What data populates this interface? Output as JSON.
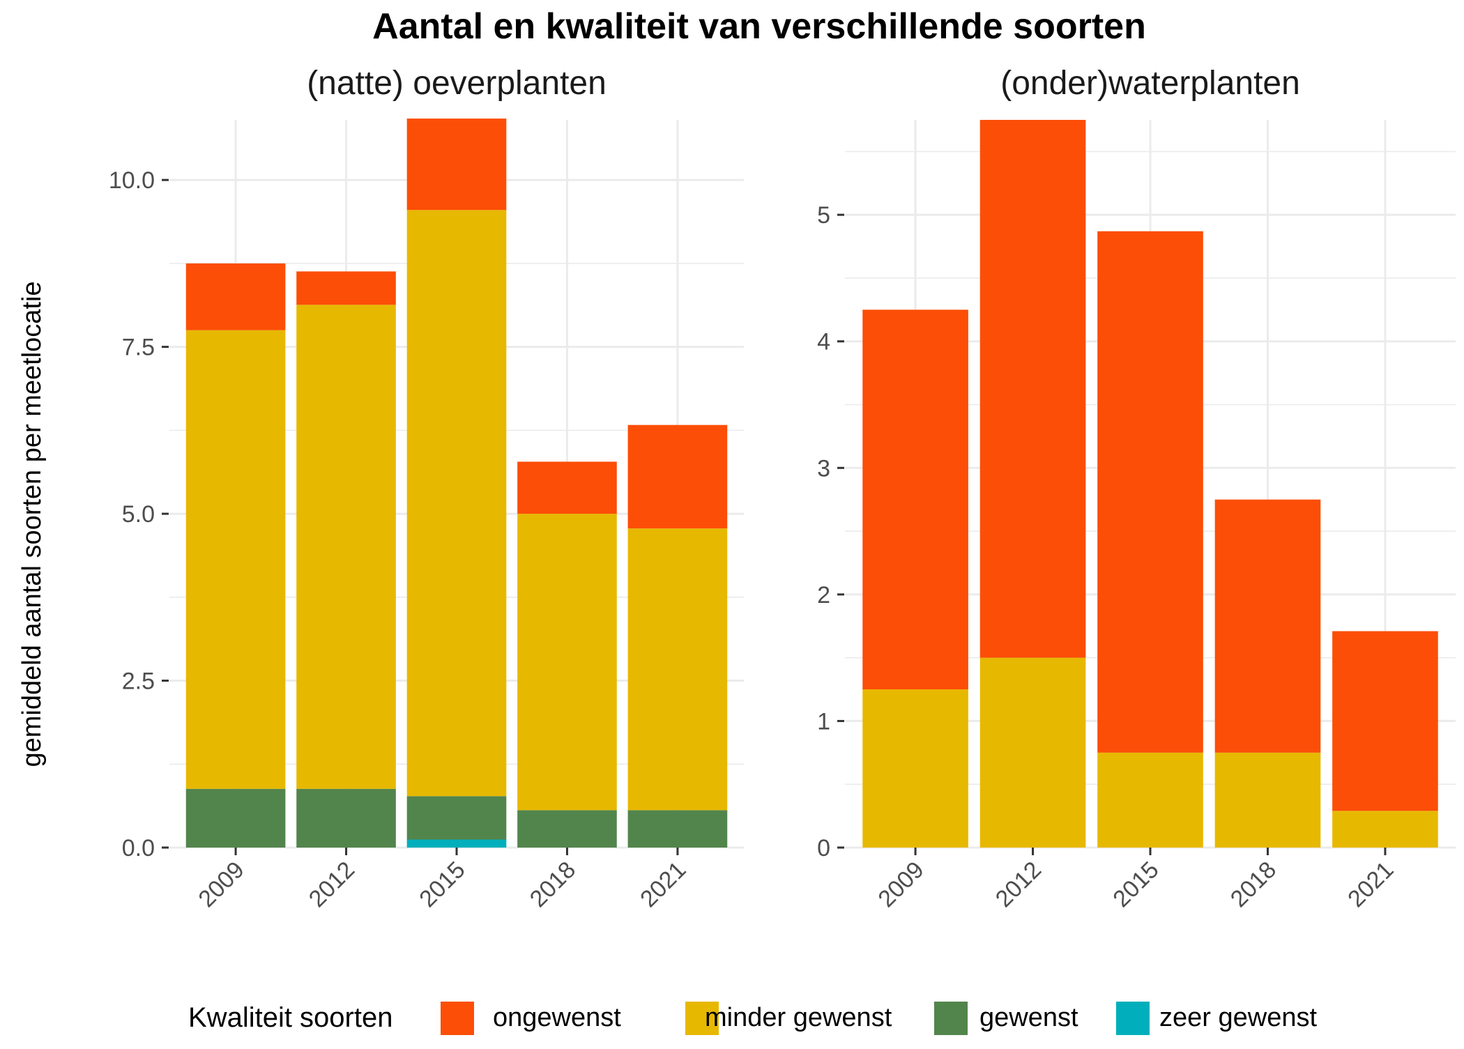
{
  "chart_data": {
    "type": "bar",
    "stacked": true,
    "title": "Aantal en kwaliteit van verschillende soorten",
    "ylabel": "gemiddeld aantal soorten per meetlocatie",
    "grid": true,
    "legend": {
      "position": "bottom",
      "title": "Kwaliteit soorten",
      "entries": [
        {
          "name": "ongewenst",
          "color": "#FC4E07"
        },
        {
          "name": "minder gewenst",
          "color": "#E7B800"
        },
        {
          "name": "gewenst",
          "color": "#52854C"
        },
        {
          "name": "zeer gewenst",
          "color": "#00AFBB"
        }
      ]
    },
    "panels": [
      {
        "title": "(natte) oeverplanten",
        "categories": [
          "2009",
          "2012",
          "2015",
          "2018",
          "2021"
        ],
        "ylim": [
          0,
          10.9
        ],
        "yticks": [
          0,
          2.5,
          5,
          7.5,
          10
        ],
        "ytick_labels": [
          "0.0",
          "2.5",
          "5.0",
          "7.5",
          "10.0"
        ],
        "series": [
          {
            "name": "zeer gewenst",
            "values": [
              0,
              0,
              0.12,
              0,
              0
            ]
          },
          {
            "name": "gewenst",
            "values": [
              0.88,
              0.88,
              0.65,
              0.56,
              0.56
            ]
          },
          {
            "name": "minder gewenst",
            "values": [
              6.87,
              7.25,
              8.78,
              4.44,
              4.22
            ]
          },
          {
            "name": "ongewenst",
            "values": [
              1.0,
              0.5,
              1.37,
              0.78,
              1.55
            ]
          }
        ]
      },
      {
        "title": "(onder)waterplanten",
        "categories": [
          "2009",
          "2012",
          "2015",
          "2018",
          "2021"
        ],
        "ylim": [
          0,
          5.75
        ],
        "yticks": [
          0,
          1,
          2,
          3,
          4,
          5
        ],
        "ytick_labels": [
          "0",
          "1",
          "2",
          "3",
          "4",
          "5"
        ],
        "series": [
          {
            "name": "zeer gewenst",
            "values": [
              0,
              0,
              0,
              0,
              0
            ]
          },
          {
            "name": "gewenst",
            "values": [
              0,
              0,
              0,
              0,
              0
            ]
          },
          {
            "name": "minder gewenst",
            "values": [
              1.25,
              1.5,
              0.75,
              0.75,
              0.29
            ]
          },
          {
            "name": "ongewenst",
            "values": [
              3.0,
              4.25,
              4.12,
              2.0,
              1.42
            ]
          }
        ]
      }
    ]
  }
}
